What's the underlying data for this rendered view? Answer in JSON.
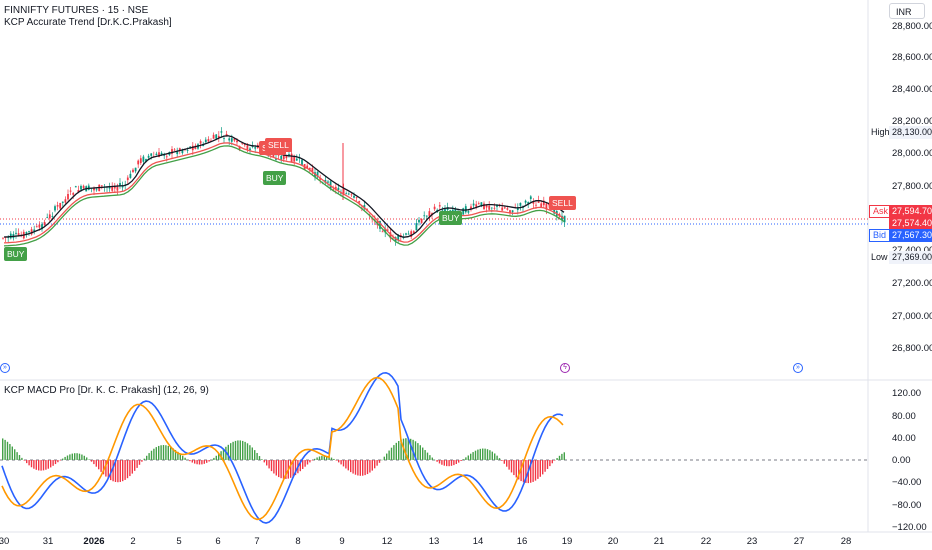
{
  "header": {
    "symbol_line": "FINNIFTY FUTURES · 15 · NSE",
    "indicator_line": "KCP Accurate Trend [Dr.K.C.Prakash]",
    "currency": "INR"
  },
  "price_axis": {
    "ticks": [
      "28,800.00",
      "28,600.00",
      "28,400.00",
      "28,200.00",
      "28,000.00",
      "27,800.00",
      "27,400.00",
      "27,200.00",
      "27,000.00",
      "26,800.00"
    ],
    "high_label": "High",
    "high_value": "28,130.00",
    "ask_label": "Ask",
    "ask_value": "27,594.70",
    "last_value": "27,574.40",
    "bid_label": "Bid",
    "bid_value": "27,567.30",
    "low_label": "Low",
    "low_value": "27,369.00"
  },
  "signals": [
    {
      "label": "BUY"
    },
    {
      "label": "SELL"
    },
    {
      "label": "SELL"
    },
    {
      "label": "BUY"
    },
    {
      "label": "BUY"
    },
    {
      "label": "SELL"
    }
  ],
  "macd": {
    "title": "KCP MACD Pro [Dr. K. C. Prakash] (12, 26, 9)",
    "ticks": [
      "120.00",
      "80.00",
      "40.00",
      "0.00",
      "−40.00",
      "−80.00",
      "−120.00"
    ]
  },
  "time_axis": {
    "ticks": [
      "30",
      "31",
      "2026",
      "2",
      "5",
      "6",
      "7",
      "8",
      "9",
      "12",
      "13",
      "14",
      "16",
      "19",
      "20",
      "21",
      "22",
      "23",
      "27",
      "28"
    ]
  },
  "colors": {
    "up": "#089981",
    "down": "#f23645",
    "buy": "#43a047",
    "sell": "#ef5350",
    "macd_line": "#2962ff",
    "signal_line": "#ff9800",
    "ask": "#f23645",
    "bid": "#2962ff"
  },
  "icons": [
    "scroll-right-icon",
    "lightning-icon",
    "scroll-right-icon"
  ]
}
